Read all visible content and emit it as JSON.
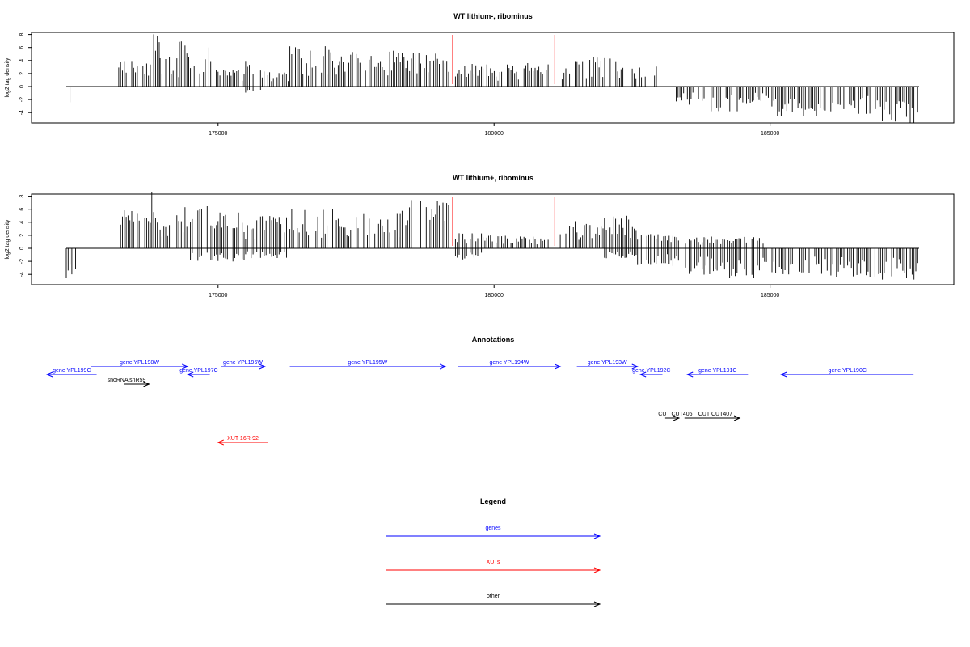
{
  "chart_data": [
    {
      "type": "bar",
      "title": "WT lithium-, ribominus",
      "ylabel": "log2 tag density",
      "xlim": [
        172000,
        188000
      ],
      "ylim": [
        -6,
        9
      ],
      "x_ticks": [
        175000,
        180000,
        185000
      ],
      "y_ticks": [
        8,
        6,
        4,
        2,
        0,
        -2,
        -4
      ],
      "grid": false,
      "markers": [
        {
          "x": 179250,
          "color": "#ff0000"
        },
        {
          "x": 181100,
          "color": "#ff0000"
        }
      ],
      "series": [
        {
          "segments": [
            {
              "x0": 172250,
              "x1": 172350,
              "min": -2.6,
              "max": 0
            },
            {
              "x0": 173200,
              "x1": 173800,
              "min": 0,
              "max": 3.8
            },
            {
              "x0": 173800,
              "x1": 173950,
              "min": 0,
              "max": 8.6
            },
            {
              "x0": 173950,
              "x1": 174300,
              "min": 0,
              "max": 4.8
            },
            {
              "x0": 174300,
              "x1": 174500,
              "min": 0,
              "max": 7.2
            },
            {
              "x0": 174500,
              "x1": 174800,
              "min": 0,
              "max": 4.2
            },
            {
              "x0": 174800,
              "x1": 175000,
              "min": 0,
              "max": 6.0
            },
            {
              "x0": 175000,
              "x1": 175500,
              "min": 0,
              "max": 2.6
            },
            {
              "x0": 175500,
              "x1": 175800,
              "min": -1.0,
              "max": 4.4
            },
            {
              "x0": 175800,
              "x1": 176300,
              "min": 0,
              "max": 2.4
            },
            {
              "x0": 176300,
              "x1": 177200,
              "min": 0,
              "max": 6.2
            },
            {
              "x0": 177200,
              "x1": 178200,
              "min": 0,
              "max": 5.5
            },
            {
              "x0": 178200,
              "x1": 179200,
              "min": 0,
              "max": 5.2
            },
            {
              "x0": 179300,
              "x1": 179800,
              "min": 0,
              "max": 3.5
            },
            {
              "x0": 179800,
              "x1": 181000,
              "min": 0,
              "max": 3.6
            },
            {
              "x0": 181200,
              "x1": 181700,
              "min": 0,
              "max": 4.0
            },
            {
              "x0": 181700,
              "x1": 182300,
              "min": 0,
              "max": 4.6
            },
            {
              "x0": 182300,
              "x1": 183000,
              "min": 0,
              "max": 3.2
            },
            {
              "x0": 183300,
              "x1": 183900,
              "min": -3.0,
              "max": 0
            },
            {
              "x0": 183900,
              "x1": 184700,
              "min": -3.8,
              "max": 0
            },
            {
              "x0": 184700,
              "x1": 185000,
              "min": -2.2,
              "max": 0
            },
            {
              "x0": 185000,
              "x1": 186000,
              "min": -4.6,
              "max": 0
            },
            {
              "x0": 186000,
              "x1": 187000,
              "min": -4.2,
              "max": 0
            },
            {
              "x0": 187000,
              "x1": 187700,
              "min": -5.6,
              "max": 0
            }
          ]
        }
      ]
    },
    {
      "type": "bar",
      "title": "WT lithium+, ribominus",
      "ylabel": "log2 tag density",
      "xlim": [
        172000,
        188000
      ],
      "ylim": [
        -6,
        9
      ],
      "x_ticks": [
        175000,
        180000,
        185000
      ],
      "y_ticks": [
        8,
        6,
        4,
        2,
        0,
        -2,
        -4
      ],
      "grid": false,
      "markers": [
        {
          "x": 179250,
          "color": "#ff0000"
        },
        {
          "x": 181100,
          "color": "#ff0000"
        }
      ],
      "series": [
        {
          "segments": [
            {
              "x0": 172250,
              "x1": 172450,
              "min": -4.6,
              "max": 0
            },
            {
              "x0": 173200,
              "x1": 173800,
              "min": 0,
              "max": 6.2
            },
            {
              "x0": 173800,
              "x1": 173950,
              "min": 0,
              "max": 8.8
            },
            {
              "x0": 173950,
              "x1": 174300,
              "min": 0,
              "max": 5.8
            },
            {
              "x0": 174300,
              "x1": 174500,
              "min": 0,
              "max": 7.2
            },
            {
              "x0": 174500,
              "x1": 175000,
              "min": -2.0,
              "max": 6.8
            },
            {
              "x0": 175000,
              "x1": 175500,
              "min": -2.4,
              "max": 5.6
            },
            {
              "x0": 175500,
              "x1": 176300,
              "min": -1.5,
              "max": 5.0
            },
            {
              "x0": 176300,
              "x1": 177200,
              "min": 0,
              "max": 6.0
            },
            {
              "x0": 177200,
              "x1": 178300,
              "min": 0,
              "max": 5.4
            },
            {
              "x0": 178300,
              "x1": 179200,
              "min": 0,
              "max": 7.4
            },
            {
              "x0": 179300,
              "x1": 179800,
              "min": -1.8,
              "max": 2.4
            },
            {
              "x0": 179800,
              "x1": 181000,
              "min": 0,
              "max": 2.0
            },
            {
              "x0": 181200,
              "x1": 182000,
              "min": 0,
              "max": 4.4
            },
            {
              "x0": 182000,
              "x1": 182600,
              "min": -1.6,
              "max": 5.0
            },
            {
              "x0": 182600,
              "x1": 183400,
              "min": -2.8,
              "max": 2.2
            },
            {
              "x0": 183400,
              "x1": 184200,
              "min": -4.2,
              "max": 1.8
            },
            {
              "x0": 184200,
              "x1": 184900,
              "min": -4.6,
              "max": 1.8
            },
            {
              "x0": 184900,
              "x1": 185900,
              "min": -4.0,
              "max": 0
            },
            {
              "x0": 185900,
              "x1": 186900,
              "min": -4.4,
              "max": 0
            },
            {
              "x0": 186900,
              "x1": 187700,
              "min": -4.8,
              "max": 0
            }
          ]
        }
      ]
    }
  ],
  "annotations": {
    "title": "Annotations",
    "items": [
      {
        "label": "gene YPL199C",
        "start": 171900,
        "end": 172800,
        "row": 1,
        "strand": "-",
        "color": "#0000ff"
      },
      {
        "label": "gene YPL198W",
        "start": 172700,
        "end": 174450,
        "row": 0,
        "strand": "+",
        "color": "#0000ff"
      },
      {
        "label": "gene YPL197C",
        "start": 174450,
        "end": 174850,
        "row": 1,
        "strand": "-",
        "color": "#0000ff"
      },
      {
        "label": "snoRNA snR59",
        "start": 173300,
        "end": 173750,
        "row": 2,
        "strand": "+",
        "color": "#000000"
      },
      {
        "label": "gene YPL196W",
        "start": 175050,
        "end": 175850,
        "row": 0,
        "strand": "+",
        "color": "#0000ff"
      },
      {
        "label": "gene YPL195W",
        "start": 176300,
        "end": 179120,
        "row": 0,
        "strand": "+",
        "color": "#0000ff"
      },
      {
        "label": "gene YPL194W",
        "start": 179350,
        "end": 181200,
        "row": 0,
        "strand": "+",
        "color": "#0000ff"
      },
      {
        "label": "gene YPL193W",
        "start": 181500,
        "end": 182600,
        "row": 0,
        "strand": "+",
        "color": "#0000ff"
      },
      {
        "label": "gene YPL192C",
        "start": 182650,
        "end": 183050,
        "row": 1,
        "strand": "-",
        "color": "#0000ff"
      },
      {
        "label": "gene YPL191C",
        "start": 183500,
        "end": 184600,
        "row": 1,
        "strand": "-",
        "color": "#0000ff"
      },
      {
        "label": "gene YPL190C",
        "start": 185200,
        "end": 187600,
        "row": 1,
        "strand": "-",
        "color": "#0000ff"
      },
      {
        "label": "CUT CUT406",
        "start": 183100,
        "end": 183350,
        "row": 4,
        "strand": "+",
        "color": "#000000"
      },
      {
        "label": "CUT CUT407",
        "start": 183450,
        "end": 184450,
        "row": 4,
        "strand": "+",
        "color": "#000000"
      },
      {
        "label": "XUT 16R-92",
        "start": 175000,
        "end": 175900,
        "row": 5,
        "strand": "-",
        "color": "#ff0000"
      }
    ]
  },
  "legend": {
    "title": "Legend",
    "items": [
      {
        "label": "genes",
        "color": "#0000ff"
      },
      {
        "label": "XUTs",
        "color": "#ff0000"
      },
      {
        "label": "other",
        "color": "#000000"
      }
    ]
  }
}
